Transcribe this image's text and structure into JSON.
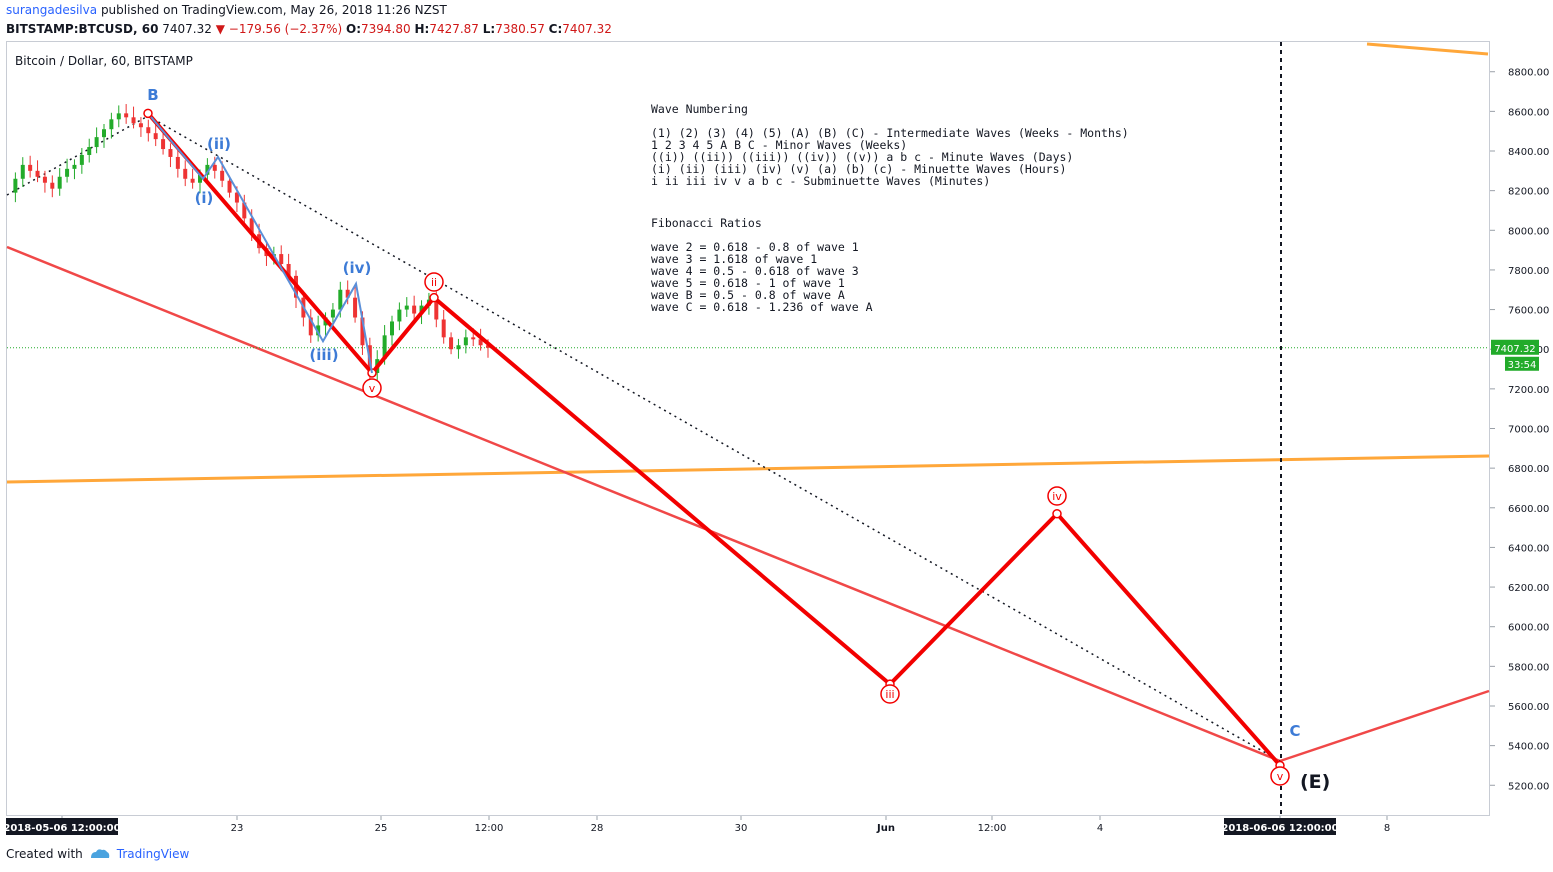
{
  "header": {
    "user": "surangadesilva",
    "published_text": "published on TradingView.com, May 26, 2018 11:26 NZST",
    "symbol": "BITSTAMP:BTCUSD, 60",
    "last": "7407.32",
    "change": "−179.56 (−2.37%)",
    "o_label": "O:",
    "o_value": "7394.80",
    "h_label": "H:",
    "h_value": "7427.87",
    "l_label": "L:",
    "l_value": "7380.57",
    "c_label": "C:",
    "c_value": "7407.32"
  },
  "footer": {
    "created_with": "Created with",
    "brand": "TradingView"
  },
  "colors": {
    "wave_red": "#f20000",
    "trend_red": "#f04848",
    "orange": "#ffa73a",
    "blue_label": "#3d7bd6",
    "price_green": "#22ab2a"
  },
  "chart_data": {
    "type": "candlestick",
    "title": "Bitcoin / Dollar, 60, BITSTAMP",
    "y_range": [
      5050,
      8950
    ],
    "y_ticks": [
      "8800.00",
      "8600.00",
      "8400.00",
      "8200.00",
      "8000.00",
      "7800.00",
      "7600.00",
      "7400.00",
      "7200.00",
      "7000.00",
      "6800.00",
      "6600.00",
      "6400.00",
      "6200.00",
      "6000.00",
      "5800.00",
      "5600.00",
      "5400.00",
      "5200.00"
    ],
    "x_labels": [
      {
        "label": "2018-05-06 12:00:00",
        "boxed": true
      },
      {
        "label": "23"
      },
      {
        "label": "25"
      },
      {
        "label": "12:00"
      },
      {
        "label": "28"
      },
      {
        "label": "30"
      },
      {
        "label": "Jun"
      },
      {
        "label": "12:00"
      },
      {
        "label": "4"
      },
      {
        "label": "2018-06-06 12:00:00",
        "boxed": true
      },
      {
        "label": "8"
      }
    ],
    "current_price": "7407.32",
    "countdown": "33:54",
    "price_series": [
      8190,
      8260,
      8330,
      8300,
      8270,
      8240,
      8210,
      8270,
      8310,
      8330,
      8380,
      8420,
      8470,
      8510,
      8560,
      8590,
      8570,
      8540,
      8520,
      8490,
      8460,
      8410,
      8370,
      8310,
      8260,
      8240,
      8280,
      8330,
      8300,
      8250,
      8190,
      8140,
      8060,
      7980,
      7910,
      7870,
      7880,
      7830,
      7770,
      7660,
      7560,
      7470,
      7520,
      7560,
      7600,
      7700,
      7660,
      7560,
      7420,
      7280,
      7350,
      7470,
      7540,
      7600,
      7620,
      7580,
      7620,
      7650,
      7550,
      7460,
      7400,
      7420,
      7460,
      7450,
      7420,
      7407
    ],
    "waves": {
      "red_path": [
        [
          8590,
          "B"
        ],
        [
          7280,
          "v"
        ],
        [
          7660,
          "ii"
        ],
        [
          5710,
          "iii"
        ],
        [
          6570,
          "iv"
        ],
        [
          5300,
          "v"
        ]
      ],
      "blue_path": [
        [
          8590,
          "B"
        ],
        [
          8260,
          "(i)"
        ],
        [
          8370,
          "(ii)"
        ],
        [
          7440,
          "(iii)"
        ],
        [
          7730,
          "(iv)"
        ],
        [
          7280,
          "(v)"
        ]
      ]
    },
    "annotations": {
      "blue_labels": [
        "B",
        "(i)",
        "(ii)",
        "(iii)",
        "(iv)",
        "C"
      ],
      "red_labels": [
        "v",
        "ii",
        "iii",
        "iv",
        "v"
      ],
      "E_label": "(E)"
    },
    "text_block": {
      "wave_heading": "Wave Numbering",
      "wave_lines": [
        "(1) (2) (3) (4) (5) (A) (B) (C) - Intermediate Waves (Weeks - Months)",
        "1 2 3 4 5 A B C - Minor Waves (Weeks)",
        "((i)) ((ii)) ((iii)) ((iv)) ((v)) a b c - Minute Waves (Days)",
        "(i) (ii) (iii) (iv) (v) (a) (b) (c) - Minuette Waves (Hours)",
        "i ii iii iv v a b c - Subminuette Waves (Minutes)"
      ],
      "fib_heading": "Fibonacci Ratios",
      "fib_lines": [
        "wave 2 = 0.618 - 0.8 of wave 1",
        "wave 3 = 1.618 of wave 1",
        "wave 4 = 0.5 - 0.618 of wave 3",
        "wave 5 = 0.618 - 1 of wave 1",
        "wave B = 0.5 - 0.8 of wave A",
        "wave C = 0.618 - 1.236 of wave A"
      ]
    }
  }
}
